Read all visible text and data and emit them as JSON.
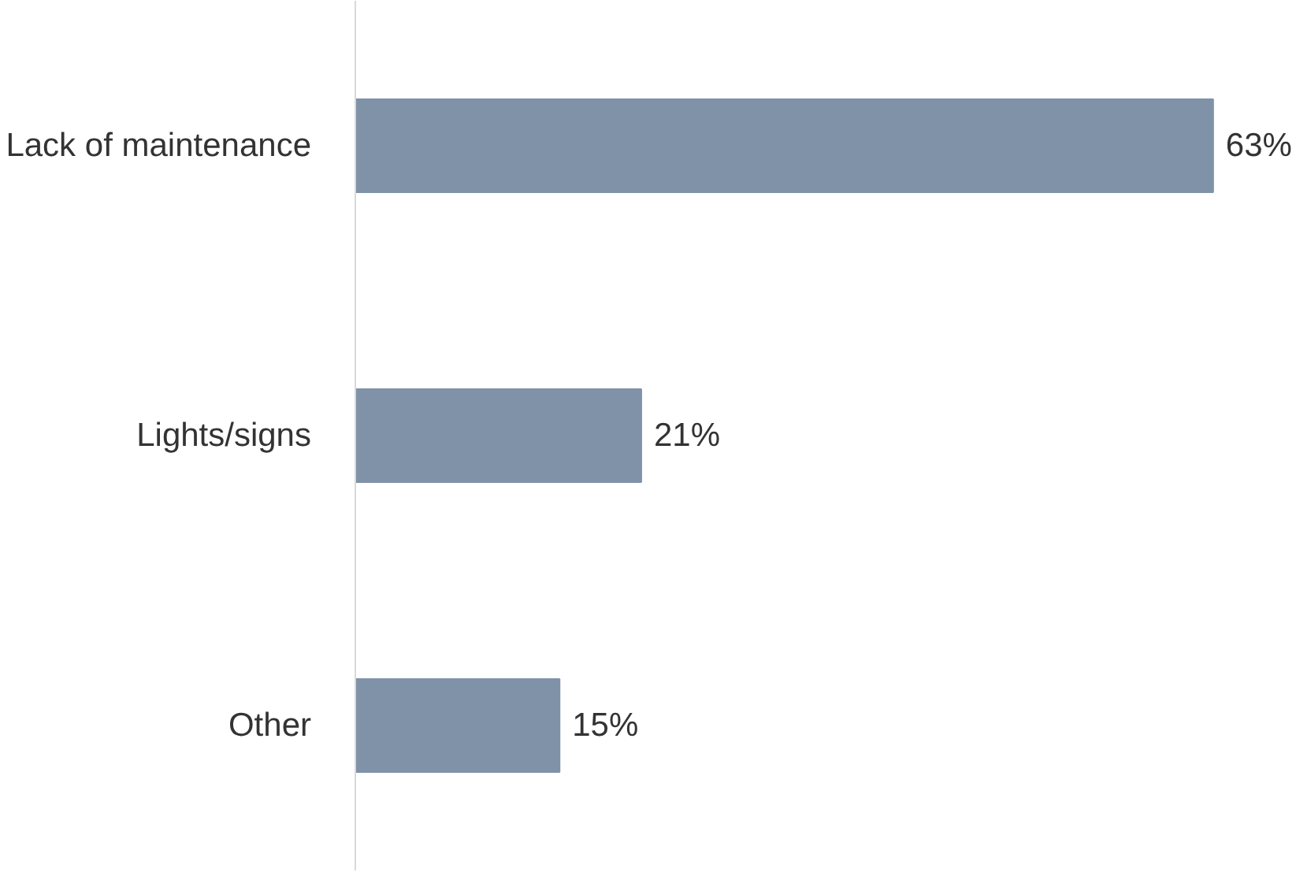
{
  "chart_data": {
    "type": "bar",
    "orientation": "horizontal",
    "categories": [
      "Lack of maintenance",
      "Lights/signs",
      "Other"
    ],
    "values": [
      63,
      21,
      15
    ],
    "color": "#7f92a8",
    "value_labels": [
      "63%",
      "21%",
      "15%"
    ]
  }
}
